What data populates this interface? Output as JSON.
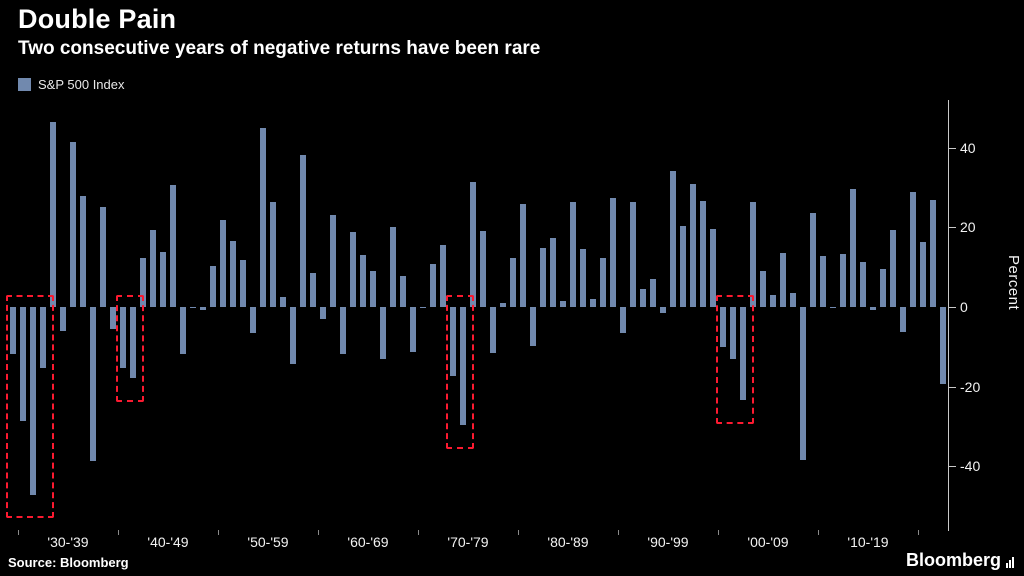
{
  "header": {
    "title": "Double Pain",
    "subtitle": "Two consecutive years of negative returns have been rare"
  },
  "legend": {
    "label": "S&P 500 Index"
  },
  "footer": {
    "source": "Source:  Bloomberg",
    "brand": "Bloomberg"
  },
  "chart_data": {
    "type": "bar",
    "title": "Double Pain",
    "subtitle": "Two consecutive years of negative returns have been rare",
    "series_name": "S&P 500 Index",
    "start_year": 1929,
    "values": [
      -11.9,
      -28.5,
      -47.1,
      -15.2,
      46.6,
      -5.9,
      41.4,
      27.9,
      -38.6,
      25.2,
      -5.4,
      -15.3,
      -17.9,
      12.4,
      19.4,
      13.8,
      30.7,
      -11.9,
      0.0,
      -0.7,
      10.3,
      21.8,
      16.5,
      11.8,
      -6.6,
      45.0,
      26.4,
      2.6,
      -14.3,
      38.1,
      8.5,
      -3.0,
      23.1,
      -11.8,
      18.9,
      13.0,
      9.1,
      -13.1,
      20.1,
      7.7,
      -11.4,
      0.1,
      10.8,
      15.6,
      -17.4,
      -29.7,
      31.5,
      19.1,
      -11.5,
      1.1,
      12.3,
      25.8,
      -9.7,
      14.8,
      17.3,
      1.4,
      26.3,
      14.6,
      2.0,
      12.4,
      27.3,
      -6.6,
      26.3,
      4.5,
      7.1,
      -1.5,
      34.1,
      20.3,
      31.0,
      26.7,
      19.5,
      -10.1,
      -13.0,
      -23.4,
      26.4,
      9.0,
      3.0,
      13.6,
      3.5,
      -38.5,
      23.5,
      12.8,
      0.0,
      13.4,
      29.6,
      11.4,
      -0.7,
      9.5,
      19.4,
      -6.2,
      28.9,
      16.3,
      26.9,
      -19.4
    ],
    "ylabel": "Percent",
    "ylim": [
      -56,
      52
    ],
    "yticks": [
      40,
      20,
      0,
      -20,
      -40
    ],
    "xticks": [
      {
        "label": "'30-'39",
        "center_year": 1934.5
      },
      {
        "label": "'40-'49",
        "center_year": 1944.5
      },
      {
        "label": "'50-'59",
        "center_year": 1954.5
      },
      {
        "label": "'60-'69",
        "center_year": 1964.5
      },
      {
        "label": "'70-'79",
        "center_year": 1974.5
      },
      {
        "label": "'80-'89",
        "center_year": 1984.5
      },
      {
        "label": "'90-'99",
        "center_year": 1994.5
      },
      {
        "label": "'00-'09",
        "center_year": 2004.5
      },
      {
        "label": "'10-'19",
        "center_year": 2014.5
      }
    ],
    "decade_boundaries": [
      1930,
      1940,
      1950,
      1960,
      1970,
      1980,
      1990,
      2000,
      2010,
      2020
    ],
    "highlights": [
      {
        "from_year": 1929,
        "to_year": 1932
      },
      {
        "from_year": 1940,
        "to_year": 1941
      },
      {
        "from_year": 1973,
        "to_year": 1974
      },
      {
        "from_year": 2000,
        "to_year": 2002
      }
    ],
    "bar_color": "#7189ae",
    "highlight_color": "#fb1a30",
    "legend_position": "top-left",
    "grid": false
  }
}
